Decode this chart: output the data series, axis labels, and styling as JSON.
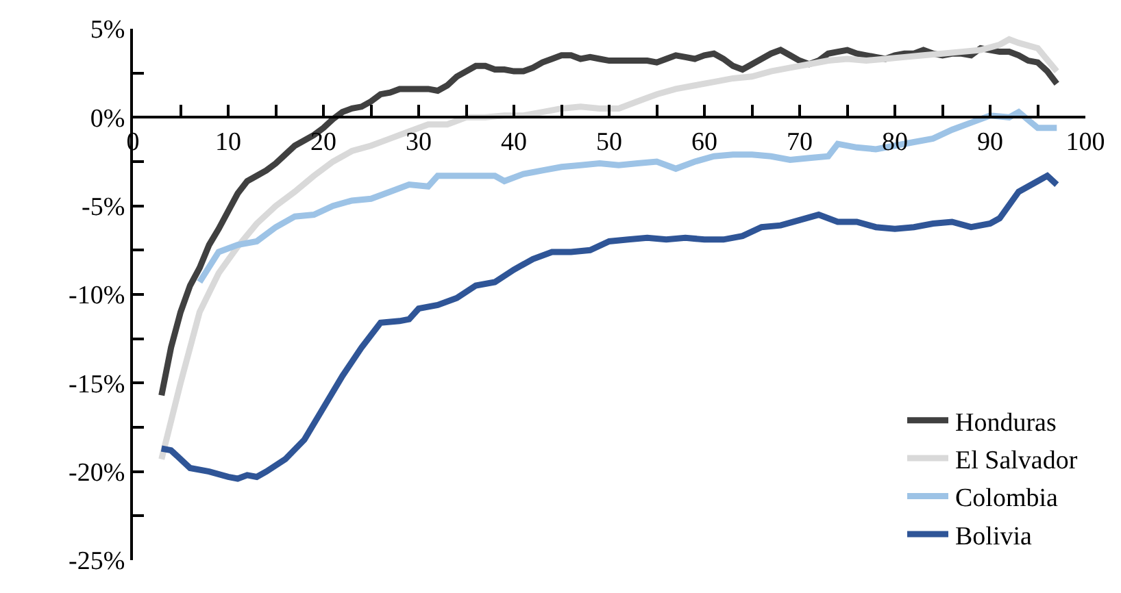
{
  "chart_data": {
    "type": "line",
    "xlim": [
      0,
      100
    ],
    "ylim": [
      -25,
      5
    ],
    "xticks": [
      0,
      {
        "value": 5,
        "label": null
      },
      10,
      {
        "value": 15,
        "label": null
      },
      20,
      {
        "value": 25,
        "label": null
      },
      30,
      {
        "value": 35,
        "label": null
      },
      40,
      {
        "value": 45,
        "label": null
      },
      50,
      {
        "value": 55,
        "label": null
      },
      60,
      {
        "value": 65,
        "label": null
      },
      70,
      {
        "value": 75,
        "label": null
      },
      80,
      {
        "value": 85,
        "label": null
      },
      90,
      {
        "value": 95,
        "label": null
      },
      100
    ],
    "yticks": [
      {
        "value": 5,
        "label": "5%"
      },
      {
        "value": 2.5,
        "label": null
      },
      {
        "value": 0,
        "label": "0%"
      },
      {
        "value": -2.5,
        "label": null
      },
      {
        "value": -5,
        "label": "-5%"
      },
      {
        "value": -7.5,
        "label": null
      },
      {
        "value": -10,
        "label": "-10%"
      },
      {
        "value": -12.5,
        "label": null
      },
      {
        "value": -15,
        "label": "-15%"
      },
      {
        "value": -17.5,
        "label": null
      },
      {
        "value": -20,
        "label": "-20%"
      },
      {
        "value": -22.5,
        "label": null
      },
      {
        "value": -25,
        "label": "-25%"
      }
    ],
    "grid": false,
    "legend": "bottom right",
    "marker": "none",
    "line_style": "solid",
    "series": [
      {
        "name": "Honduras",
        "color": "#404040",
        "x": [
          3,
          4,
          5,
          6,
          7,
          8,
          9,
          10,
          11,
          12,
          13,
          14,
          15,
          16,
          17,
          18,
          19,
          20,
          21,
          22,
          23,
          24,
          25,
          26,
          27,
          28,
          29,
          30,
          31,
          32,
          33,
          34,
          35,
          36,
          37,
          38,
          39,
          40,
          41,
          42,
          43,
          44,
          45,
          46,
          47,
          48,
          49,
          50,
          51,
          52,
          53,
          54,
          55,
          56,
          57,
          58,
          59,
          60,
          61,
          62,
          63,
          64,
          65,
          66,
          67,
          68,
          69,
          70,
          71,
          72,
          73,
          74,
          75,
          76,
          77,
          78,
          79,
          80,
          81,
          82,
          83,
          84,
          85,
          86,
          87,
          88,
          89,
          90,
          91,
          92,
          93,
          94,
          95,
          96,
          97
        ],
        "values": [
          -15.7,
          -13,
          -11,
          -9.5,
          -8.5,
          -7.2,
          -6.3,
          -5.3,
          -4.3,
          -3.6,
          -3.3,
          -3.0,
          -2.6,
          -2.1,
          -1.6,
          -1.3,
          -1.0,
          -0.6,
          -0.1,
          0.3,
          0.5,
          0.6,
          0.9,
          1.3,
          1.4,
          1.6,
          1.6,
          1.6,
          1.6,
          1.5,
          1.8,
          2.3,
          2.6,
          2.9,
          2.9,
          2.7,
          2.7,
          2.6,
          2.6,
          2.8,
          3.1,
          3.3,
          3.5,
          3.5,
          3.3,
          3.4,
          3.3,
          3.2,
          3.2,
          3.2,
          3.2,
          3.2,
          3.1,
          3.3,
          3.5,
          3.4,
          3.3,
          3.5,
          3.6,
          3.3,
          2.9,
          2.7,
          3.0,
          3.3,
          3.6,
          3.8,
          3.5,
          3.2,
          3.0,
          3.2,
          3.6,
          3.7,
          3.8,
          3.6,
          3.5,
          3.4,
          3.3,
          3.5,
          3.6,
          3.6,
          3.8,
          3.6,
          3.5,
          3.6,
          3.6,
          3.5,
          3.9,
          3.8,
          3.7,
          3.7,
          3.5,
          3.2,
          3.1,
          2.6,
          1.9
        ]
      },
      {
        "name": "El Salvador",
        "color": "#d9d9d9",
        "x": [
          3,
          5,
          7,
          9,
          11,
          13,
          15,
          17,
          19,
          21,
          23,
          25,
          27,
          29,
          31,
          33,
          35,
          37,
          39,
          41,
          43,
          45,
          47,
          49,
          51,
          53,
          55,
          57,
          59,
          61,
          63,
          65,
          67,
          69,
          71,
          73,
          75,
          77,
          79,
          81,
          83,
          85,
          87,
          89,
          91,
          92,
          93,
          95,
          97
        ],
        "values": [
          -19.3,
          -15,
          -11,
          -8.8,
          -7.3,
          -6,
          -5,
          -4.2,
          -3.3,
          -2.5,
          -1.9,
          -1.6,
          -1.2,
          -0.8,
          -0.4,
          -0.4,
          0,
          0,
          0.1,
          0.1,
          0.3,
          0.5,
          0.6,
          0.5,
          0.5,
          0.9,
          1.3,
          1.6,
          1.8,
          2.0,
          2.2,
          2.3,
          2.6,
          2.8,
          3.0,
          3.2,
          3.3,
          3.2,
          3.3,
          3.4,
          3.5,
          3.6,
          3.7,
          3.8,
          4.1,
          4.4,
          4.2,
          3.9,
          2.6
        ]
      },
      {
        "name": "Colombia",
        "color": "#9dc3e6",
        "x": [
          7,
          9,
          11,
          13,
          15,
          17,
          19,
          21,
          23,
          25,
          27,
          29,
          31,
          32,
          35,
          38,
          39,
          41,
          43,
          45,
          47,
          49,
          51,
          53,
          55,
          57,
          59,
          61,
          63,
          65,
          67,
          69,
          71,
          73,
          74,
          76,
          78,
          80,
          82,
          84,
          86,
          88,
          90,
          92,
          93,
          95,
          97
        ],
        "values": [
          -9.3,
          -7.6,
          -7.2,
          -7.0,
          -6.2,
          -5.6,
          -5.5,
          -5.0,
          -4.7,
          -4.6,
          -4.2,
          -3.8,
          -3.9,
          -3.3,
          -3.3,
          -3.3,
          -3.6,
          -3.2,
          -3.0,
          -2.8,
          -2.7,
          -2.6,
          -2.7,
          -2.6,
          -2.5,
          -2.9,
          -2.5,
          -2.2,
          -2.1,
          -2.1,
          -2.2,
          -2.4,
          -2.3,
          -2.2,
          -1.5,
          -1.7,
          -1.8,
          -1.6,
          -1.4,
          -1.2,
          -0.7,
          -0.3,
          0.1,
          0.0,
          0.3,
          -0.6,
          -0.6
        ]
      },
      {
        "name": "Bolivia",
        "color": "#2f5597",
        "x": [
          3,
          4,
          6,
          8,
          10,
          11,
          12,
          13,
          14,
          16,
          18,
          20,
          22,
          24,
          26,
          28,
          29,
          30,
          32,
          34,
          36,
          38,
          40,
          42,
          44,
          46,
          48,
          50,
          52,
          54,
          56,
          58,
          60,
          62,
          64,
          66,
          68,
          70,
          72,
          74,
          76,
          78,
          80,
          82,
          84,
          86,
          88,
          90,
          91,
          93,
          95,
          96,
          97
        ],
        "values": [
          -18.7,
          -18.8,
          -19.8,
          -20.0,
          -20.3,
          -20.4,
          -20.2,
          -20.3,
          -20.0,
          -19.3,
          -18.2,
          -16.4,
          -14.6,
          -13.0,
          -11.6,
          -11.5,
          -11.4,
          -10.8,
          -10.6,
          -10.2,
          -9.5,
          -9.3,
          -8.6,
          -8.0,
          -7.6,
          -7.6,
          -7.5,
          -7.0,
          -6.9,
          -6.8,
          -6.9,
          -6.8,
          -6.9,
          -6.9,
          -6.7,
          -6.2,
          -6.1,
          -5.8,
          -5.5,
          -5.9,
          -5.9,
          -6.2,
          -6.3,
          -6.2,
          -6.0,
          -5.9,
          -6.2,
          -6.0,
          -5.7,
          -4.2,
          -3.6,
          -3.3,
          -3.8
        ]
      }
    ]
  }
}
